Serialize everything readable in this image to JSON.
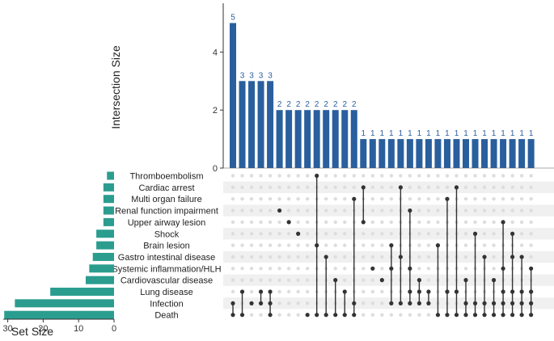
{
  "chart_data": {
    "type": "upset",
    "colors": {
      "bar": "#2a5f9e",
      "set_bar": "#2a9d8f",
      "dot_active": "#333333",
      "dot_inactive": "#dddddd",
      "stripe": "#f0f0f0",
      "count_label": "#2a5f9e"
    },
    "title": "",
    "intersection_ylabel": "Intersection Size",
    "intersection_ylim": [
      0,
      5.6
    ],
    "intersection_yticks": [
      "0",
      "2",
      "4"
    ],
    "set_xlabel": "Set Size",
    "set_xlim": [
      0,
      32
    ],
    "set_xticks": [
      "30",
      "20",
      "10",
      "0"
    ],
    "sets": [
      {
        "name": "Thromboembolism",
        "size": 2
      },
      {
        "name": "Cardiac arrest",
        "size": 3
      },
      {
        "name": "Multi organ failure",
        "size": 3
      },
      {
        "name": "Renal function impairment",
        "size": 3
      },
      {
        "name": "Upper airway lesion",
        "size": 3
      },
      {
        "name": "Shock",
        "size": 5
      },
      {
        "name": "Brain lesion",
        "size": 5
      },
      {
        "name": "Gastro intestinal disease",
        "size": 6
      },
      {
        "name": "Systemic inflammation/HLH",
        "size": 7
      },
      {
        "name": "Cardiovascular disease",
        "size": 8
      },
      {
        "name": "Lung disease",
        "size": 18
      },
      {
        "name": "Infection",
        "size": 28
      },
      {
        "name": "Death",
        "size": 31
      }
    ],
    "intersections": [
      {
        "size": 5,
        "label": "5",
        "sets": [
          "Infection",
          "Death"
        ]
      },
      {
        "size": 3,
        "label": "3",
        "sets": [
          "Lung disease",
          "Death"
        ]
      },
      {
        "size": 3,
        "label": "3",
        "sets": [
          "Infection"
        ]
      },
      {
        "size": 3,
        "label": "3",
        "sets": [
          "Lung disease",
          "Infection"
        ]
      },
      {
        "size": 3,
        "label": "3",
        "sets": [
          "Lung disease",
          "Infection",
          "Death"
        ]
      },
      {
        "size": 2,
        "label": "2",
        "sets": [
          "Renal function impairment"
        ]
      },
      {
        "size": 2,
        "label": "2",
        "sets": [
          "Upper airway lesion"
        ]
      },
      {
        "size": 2,
        "label": "2",
        "sets": [
          "Shock"
        ]
      },
      {
        "size": 2,
        "label": "2",
        "sets": [
          "Death"
        ]
      },
      {
        "size": 2,
        "label": "2",
        "sets": [
          "Thromboembolism",
          "Brain lesion",
          "Death"
        ]
      },
      {
        "size": 2,
        "label": "2",
        "sets": [
          "Gastro intestinal disease",
          "Death"
        ]
      },
      {
        "size": 2,
        "label": "2",
        "sets": [
          "Cardiovascular disease",
          "Death"
        ]
      },
      {
        "size": 2,
        "label": "2",
        "sets": [
          "Lung disease",
          "Death"
        ]
      },
      {
        "size": 2,
        "label": "2",
        "sets": [
          "Multi organ failure",
          "Infection",
          "Death"
        ]
      },
      {
        "size": 1,
        "label": "1",
        "sets": [
          "Cardiac arrest",
          "Upper airway lesion"
        ]
      },
      {
        "size": 1,
        "label": "1",
        "sets": [
          "Systemic inflammation/HLH"
        ]
      },
      {
        "size": 1,
        "label": "1",
        "sets": [
          "Cardiovascular disease"
        ]
      },
      {
        "size": 1,
        "label": "1",
        "sets": [
          "Brain lesion",
          "Systemic inflammation/HLH",
          "Infection"
        ]
      },
      {
        "size": 1,
        "label": "1",
        "sets": [
          "Cardiac arrest",
          "Gastro intestinal disease",
          "Infection"
        ]
      },
      {
        "size": 1,
        "label": "1",
        "sets": [
          "Renal function impairment",
          "Systemic inflammation/HLH",
          "Lung disease",
          "Infection"
        ]
      },
      {
        "size": 1,
        "label": "1",
        "sets": [
          "Cardiovascular disease",
          "Lung disease",
          "Infection"
        ]
      },
      {
        "size": 1,
        "label": "1",
        "sets": [
          "Lung disease",
          "Infection"
        ]
      },
      {
        "size": 1,
        "label": "1",
        "sets": [
          "Brain lesion",
          "Death"
        ]
      },
      {
        "size": 1,
        "label": "1",
        "sets": [
          "Multi organ failure",
          "Lung disease",
          "Death"
        ]
      },
      {
        "size": 1,
        "label": "1",
        "sets": [
          "Cardiac arrest",
          "Lung disease",
          "Death"
        ]
      },
      {
        "size": 1,
        "label": "1",
        "sets": [
          "Cardiovascular disease",
          "Infection",
          "Death"
        ]
      },
      {
        "size": 1,
        "label": "1",
        "sets": [
          "Shock",
          "Infection",
          "Death"
        ]
      },
      {
        "size": 1,
        "label": "1",
        "sets": [
          "Gastro intestinal disease",
          "Infection",
          "Death"
        ]
      },
      {
        "size": 1,
        "label": "1",
        "sets": [
          "Cardiovascular disease",
          "Infection",
          "Death"
        ]
      },
      {
        "size": 1,
        "label": "1",
        "sets": [
          "Upper airway lesion",
          "Systemic inflammation/HLH",
          "Lung disease",
          "Infection",
          "Death"
        ]
      },
      {
        "size": 1,
        "label": "1",
        "sets": [
          "Shock",
          "Gastro intestinal disease",
          "Lung disease",
          "Infection",
          "Death"
        ]
      },
      {
        "size": 1,
        "label": "1",
        "sets": [
          "Gastro intestinal disease",
          "Lung disease",
          "Infection",
          "Death"
        ]
      },
      {
        "size": 1,
        "label": "1",
        "sets": [
          "Systemic inflammation/HLH",
          "Lung disease",
          "Infection",
          "Death"
        ]
      }
    ]
  }
}
